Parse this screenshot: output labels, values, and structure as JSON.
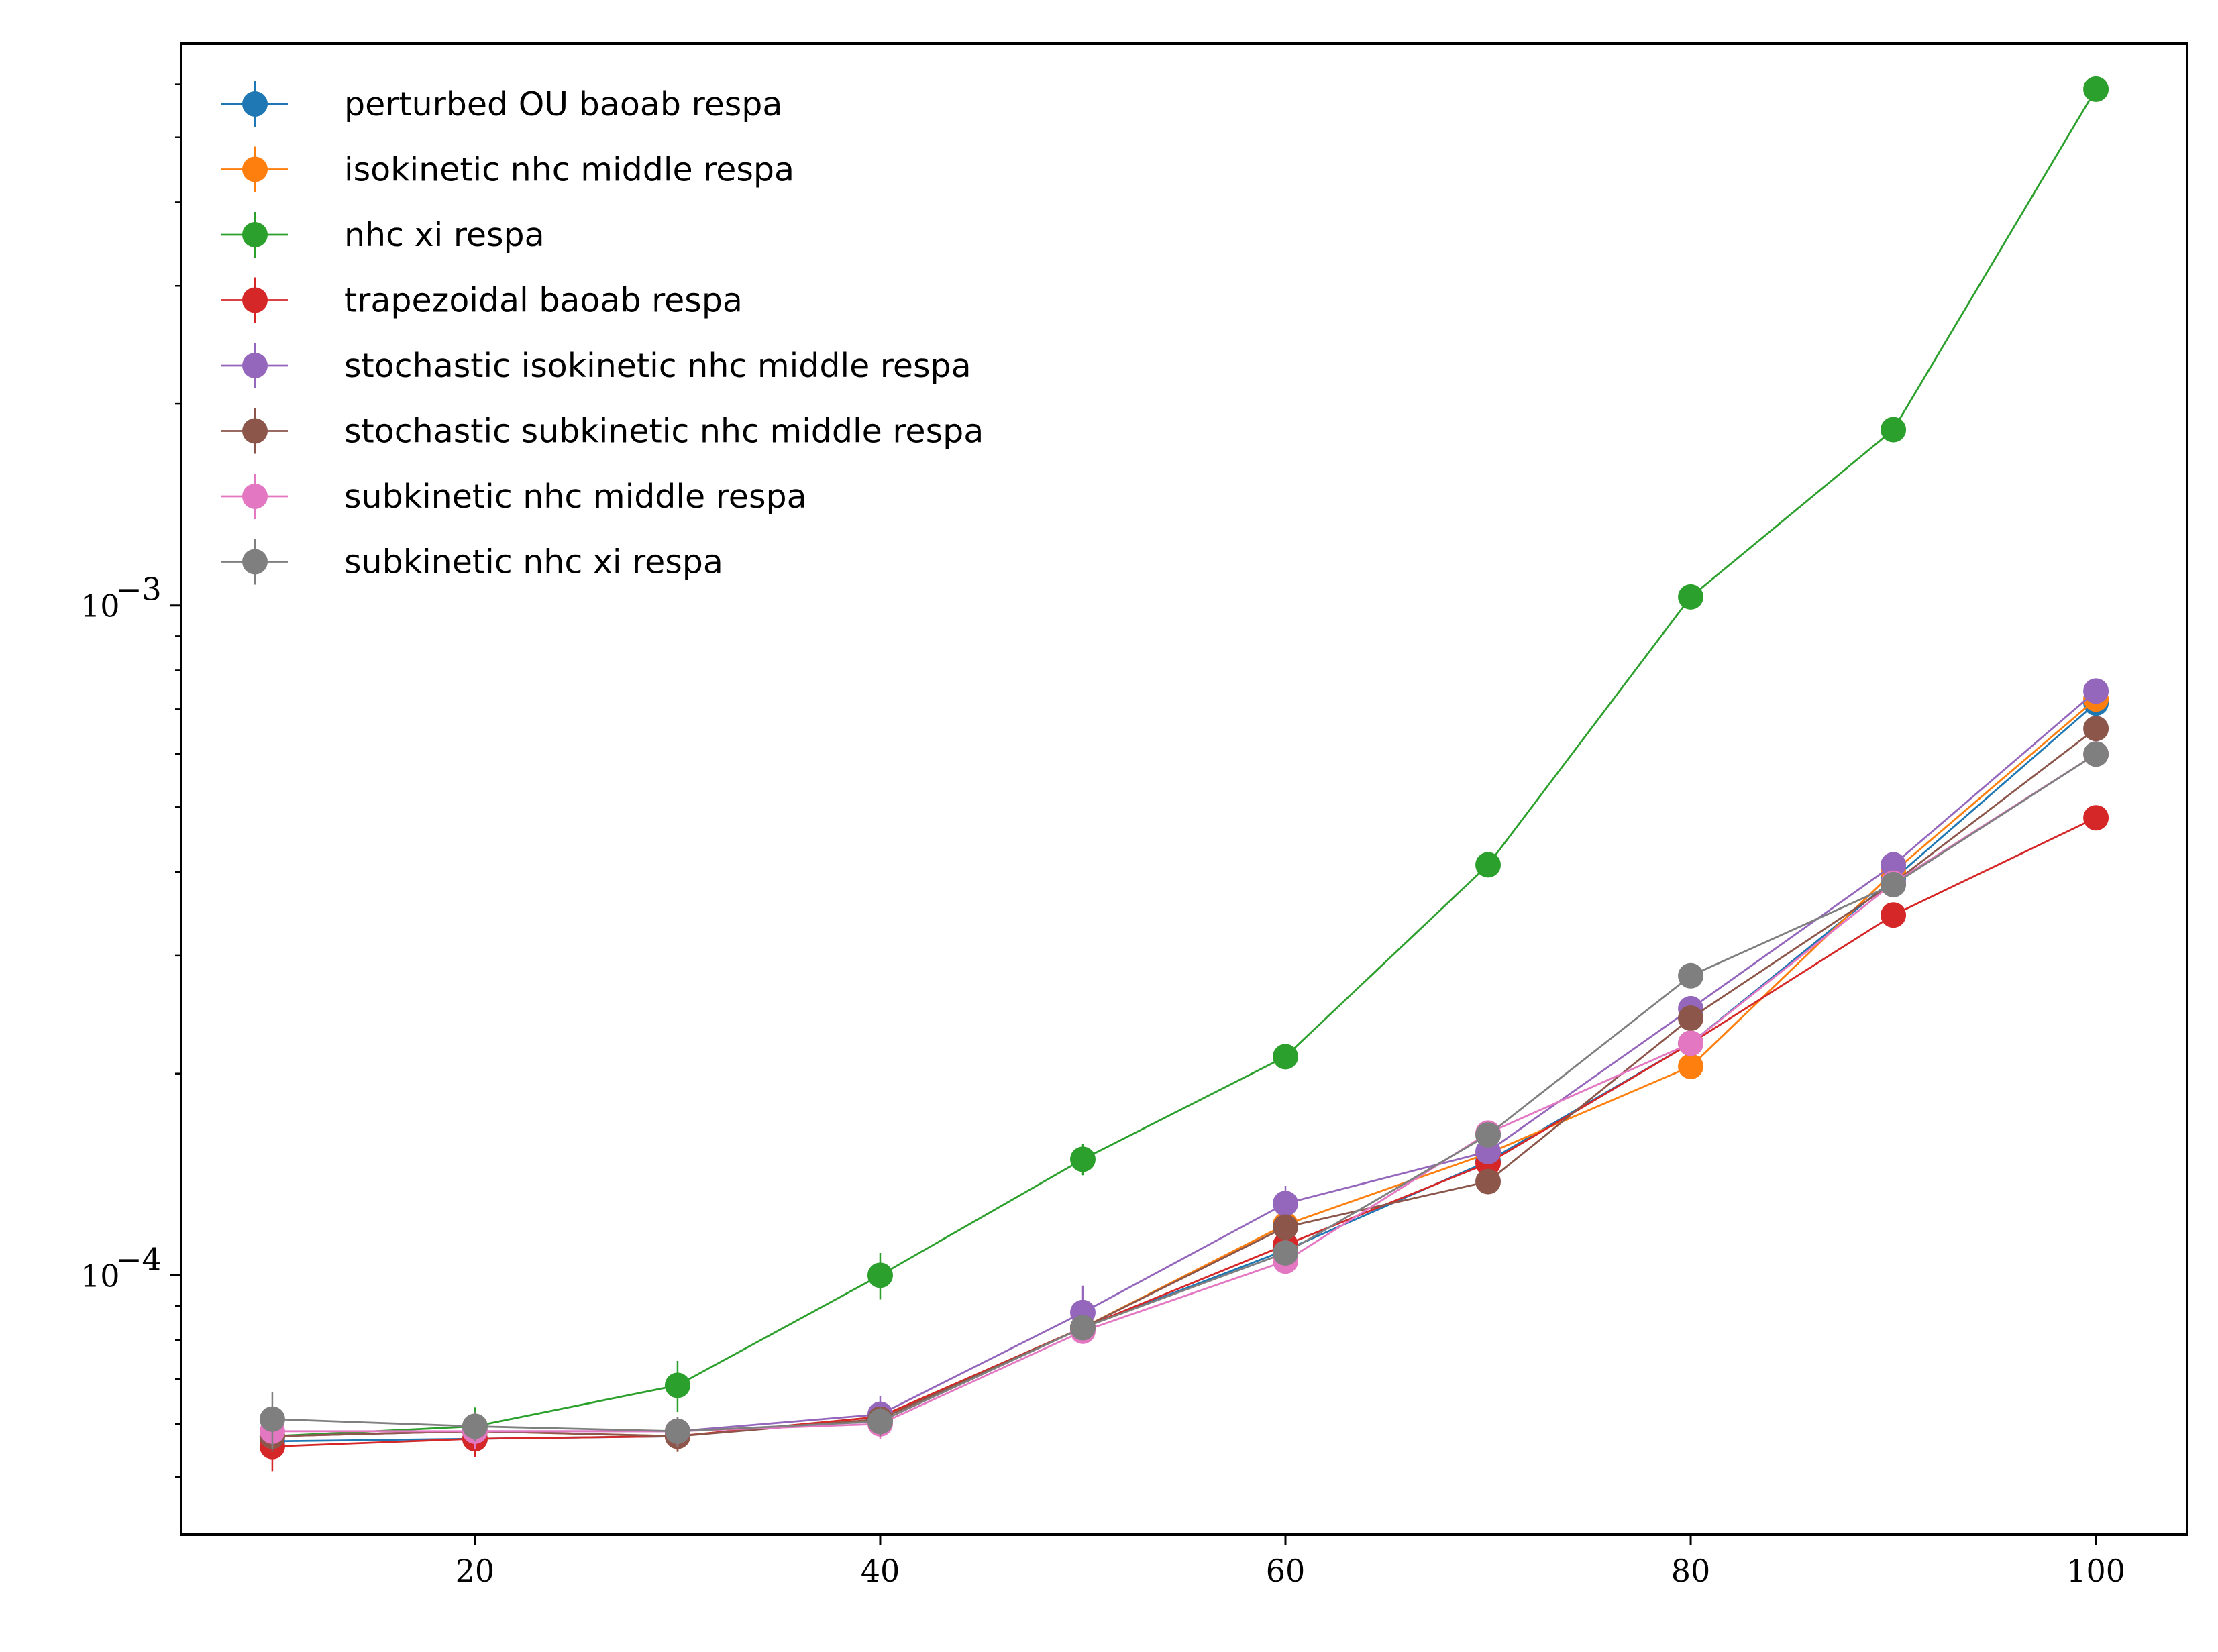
{
  "chart_data": {
    "type": "line",
    "title": "",
    "xlabel": "",
    "ylabel": "",
    "yscale": "log",
    "xlim": [
      5.5,
      104.5
    ],
    "ylim": [
      4.1e-05,
      0.0069
    ],
    "x_ticks": [
      20,
      40,
      60,
      80,
      100
    ],
    "x_tick_labels": [
      "20",
      "40",
      "60",
      "80",
      "100"
    ],
    "y_major_ticks": [
      {
        "value": 0.001,
        "mantissa": "10",
        "exponent": "−3"
      },
      {
        "value": 0.0001,
        "mantissa": "10",
        "exponent": "−4"
      }
    ],
    "y_minor_ticks": [
      5e-05,
      6e-05,
      7e-05,
      8e-05,
      9e-05,
      0.0002,
      0.0003,
      0.0004,
      0.0005,
      0.0006,
      0.0007,
      0.0008,
      0.0009,
      0.002,
      0.003,
      0.004,
      0.005,
      0.006
    ],
    "grid": false,
    "legend_position": "top-left",
    "x": [
      10,
      20,
      30,
      40,
      50,
      60,
      70,
      80,
      90,
      100
    ],
    "series": [
      {
        "name": "perturbed OU baoab respa",
        "color": "#1f77b4",
        "values": [
          5.65e-05,
          5.7e-05,
          5.75e-05,
          6.15e-05,
          8.35e-05,
          0.000109,
          0.000148,
          0.000222,
          0.00039,
          0.000715
        ],
        "errors": [
          3e-06,
          3.5e-06,
          3e-06,
          2.5e-06,
          2e-06,
          3e-06,
          4e-06,
          6e-06,
          1e-05,
          1.5e-05
        ]
      },
      {
        "name": "isokinetic nhc middle respa",
        "color": "#ff7f0e",
        "values": [
          5.75e-05,
          5.85e-05,
          5.75e-05,
          6.15e-05,
          8.35e-05,
          0.000119,
          0.000152,
          0.000205,
          0.0004,
          0.000725
        ],
        "errors": [
          3e-06,
          3.5e-06,
          3e-06,
          2.5e-06,
          2e-06,
          3e-06,
          4e-06,
          6e-06,
          1e-05,
          1.5e-05
        ]
      },
      {
        "name": "nhc xi respa",
        "color": "#2ca02c",
        "values": [
          5.75e-05,
          5.95e-05,
          6.85e-05,
          0.0001,
          0.000149,
          0.000212,
          0.00041,
          0.00103,
          0.00183,
          0.0059
        ],
        "errors": [
          3e-06,
          4e-06,
          6e-06,
          8e-06,
          8e-06,
          9e-06,
          8e-06,
          2e-05,
          3e-05,
          9e-05
        ]
      },
      {
        "name": "trapezoidal baoab respa",
        "color": "#d62728",
        "values": [
          5.55e-05,
          5.7e-05,
          5.75e-05,
          6.15e-05,
          8.35e-05,
          0.000111,
          0.000147,
          0.000222,
          0.000345,
          0.000482
        ],
        "errors": [
          4.5e-06,
          3.5e-06,
          3e-06,
          2.5e-06,
          2e-06,
          3e-06,
          4e-06,
          6e-06,
          1e-05,
          1.2e-05
        ]
      },
      {
        "name": "stochastic isokinetic nhc middle respa",
        "color": "#9467bd",
        "values": [
          5.75e-05,
          5.85e-05,
          5.85e-05,
          6.2e-05,
          8.8e-05,
          0.000128,
          0.000153,
          0.00025,
          0.00041,
          0.000745
        ],
        "errors": [
          3e-06,
          3.5e-06,
          3e-06,
          4e-06,
          8.5e-06,
          8e-06,
          5e-06,
          8e-06,
          1e-05,
          1.5e-05
        ]
      },
      {
        "name": "stochastic subkinetic nhc middle respa",
        "color": "#8c564b",
        "values": [
          5.75e-05,
          5.85e-05,
          5.75e-05,
          6.1e-05,
          8.35e-05,
          0.000118,
          0.000138,
          0.000242,
          0.000385,
          0.000655
        ],
        "errors": [
          3e-06,
          3.5e-06,
          3e-06,
          2.5e-06,
          2e-06,
          3e-06,
          4e-06,
          6e-06,
          1e-05,
          1.5e-05
        ]
      },
      {
        "name": "subkinetic nhc middle respa",
        "color": "#e377c2",
        "values": [
          5.85e-05,
          5.85e-05,
          5.85e-05,
          6e-05,
          8.25e-05,
          0.000105,
          0.000163,
          0.000222,
          0.000385,
          0.0006
        ],
        "errors": [
          3e-06,
          3.5e-06,
          3e-06,
          3e-06,
          2e-06,
          4e-06,
          6e-06,
          6e-06,
          1e-05,
          1.5e-05
        ]
      },
      {
        "name": "subkinetic nhc xi respa",
        "color": "#7f7f7f",
        "values": [
          6.1e-05,
          5.95e-05,
          5.85e-05,
          6.05e-05,
          8.35e-05,
          0.000108,
          0.000162,
          0.00028,
          0.000383,
          0.0006
        ],
        "errors": [
          6e-06,
          3e-06,
          3e-06,
          3e-06,
          2e-06,
          3e-06,
          5e-06,
          7e-06,
          1e-05,
          1.5e-05
        ]
      }
    ]
  }
}
